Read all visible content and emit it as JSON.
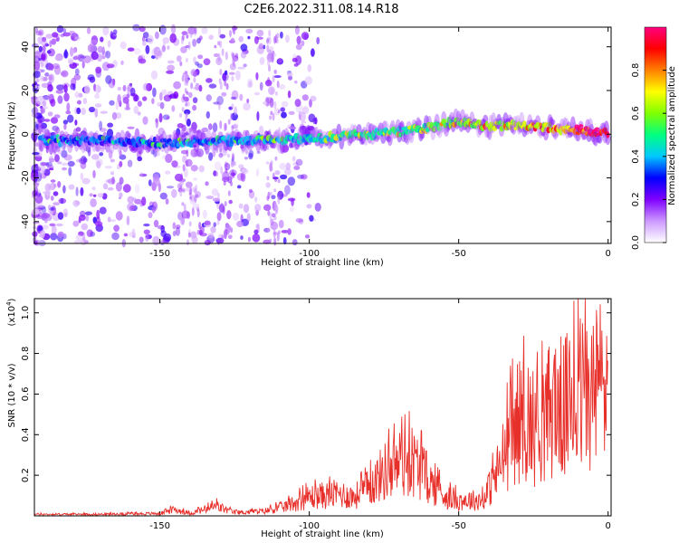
{
  "title": "C2E6.2022.311.08.14.R18",
  "chart_data": [
    {
      "type": "heatmap",
      "xlabel": "Height of straight line (km)",
      "ylabel": "Frequency (Hz)",
      "xlim": [
        -192,
        1
      ],
      "ylim": [
        -50,
        49
      ],
      "x_ticks": [
        "-150",
        "-100",
        "-50",
        "0"
      ],
      "y_ticks": [
        "-40",
        "-20",
        "0",
        "20",
        "40"
      ],
      "colorbar": {
        "label": "Normalized spectral amplitude",
        "range": [
          0,
          1
        ],
        "ticks": [
          "0.0",
          "0.2",
          "0.4",
          "0.6",
          "0.8"
        ],
        "colors": [
          "#ffffff",
          "#cc99ff",
          "#8000ff",
          "#0000ff",
          "#00c8ff",
          "#00ff80",
          "#80ff00",
          "#ffff00",
          "#ff8000",
          "#ff0000",
          "#ff0080"
        ]
      },
      "ridge": [
        {
          "x": -190,
          "y": -3
        },
        {
          "x": -170,
          "y": -3
        },
        {
          "x": -150,
          "y": -4
        },
        {
          "x": -130,
          "y": -3
        },
        {
          "x": -110,
          "y": -3
        },
        {
          "x": -100,
          "y": -2
        },
        {
          "x": -90,
          "y": -1
        },
        {
          "x": -80,
          "y": 0
        },
        {
          "x": -70,
          "y": 1
        },
        {
          "x": -60,
          "y": 3
        },
        {
          "x": -50,
          "y": 6
        },
        {
          "x": -40,
          "y": 4
        },
        {
          "x": -30,
          "y": 4
        },
        {
          "x": -20,
          "y": 3
        },
        {
          "x": -10,
          "y": 2
        },
        {
          "x": 0,
          "y": 0
        }
      ]
    },
    {
      "type": "line",
      "xlabel": "Height of straight line (km)",
      "ylabel": "SNR (10 * v/v)",
      "y_multiplier": "(x10",
      "y_multiplier_exp": "4",
      "y_multiplier_close": ")",
      "xlim": [
        -192,
        1
      ],
      "ylim": [
        0,
        1.07
      ],
      "x_ticks": [
        "-150",
        "-100",
        "-50",
        "0"
      ],
      "y_ticks": [
        "0.2",
        "0.4",
        "0.6",
        "0.8",
        "1.0"
      ],
      "series": [
        {
          "color": "#e8302b",
          "points": [
            {
              "x": -192,
              "y": 0.01
            },
            {
              "x": -170,
              "y": 0.01
            },
            {
              "x": -150,
              "y": 0.015
            },
            {
              "x": -145,
              "y": 0.04
            },
            {
              "x": -140,
              "y": 0.015
            },
            {
              "x": -131,
              "y": 0.06
            },
            {
              "x": -125,
              "y": 0.02
            },
            {
              "x": -115,
              "y": 0.03
            },
            {
              "x": -108,
              "y": 0.06
            },
            {
              "x": -100,
              "y": 0.12
            },
            {
              "x": -95,
              "y": 0.13
            },
            {
              "x": -90,
              "y": 0.14
            },
            {
              "x": -85,
              "y": 0.12
            },
            {
              "x": -80,
              "y": 0.18
            },
            {
              "x": -75,
              "y": 0.28
            },
            {
              "x": -70,
              "y": 0.33
            },
            {
              "x": -66,
              "y": 0.36
            },
            {
              "x": -62,
              "y": 0.28
            },
            {
              "x": -58,
              "y": 0.18
            },
            {
              "x": -54,
              "y": 0.12
            },
            {
              "x": -50,
              "y": 0.1
            },
            {
              "x": -45,
              "y": 0.1
            },
            {
              "x": -42,
              "y": 0.1
            },
            {
              "x": -39,
              "y": 0.2
            },
            {
              "x": -36,
              "y": 0.32
            },
            {
              "x": -33,
              "y": 0.5
            },
            {
              "x": -30,
              "y": 0.6
            },
            {
              "x": -27,
              "y": 0.62
            },
            {
              "x": -24,
              "y": 0.55
            },
            {
              "x": -21,
              "y": 0.62
            },
            {
              "x": -18,
              "y": 0.72
            },
            {
              "x": -15,
              "y": 0.68
            },
            {
              "x": -12,
              "y": 0.72
            },
            {
              "x": -9,
              "y": 0.78
            },
            {
              "x": -6,
              "y": 0.76
            },
            {
              "x": -3,
              "y": 0.85
            },
            {
              "x": 0,
              "y": 0.86
            }
          ]
        }
      ]
    }
  ]
}
